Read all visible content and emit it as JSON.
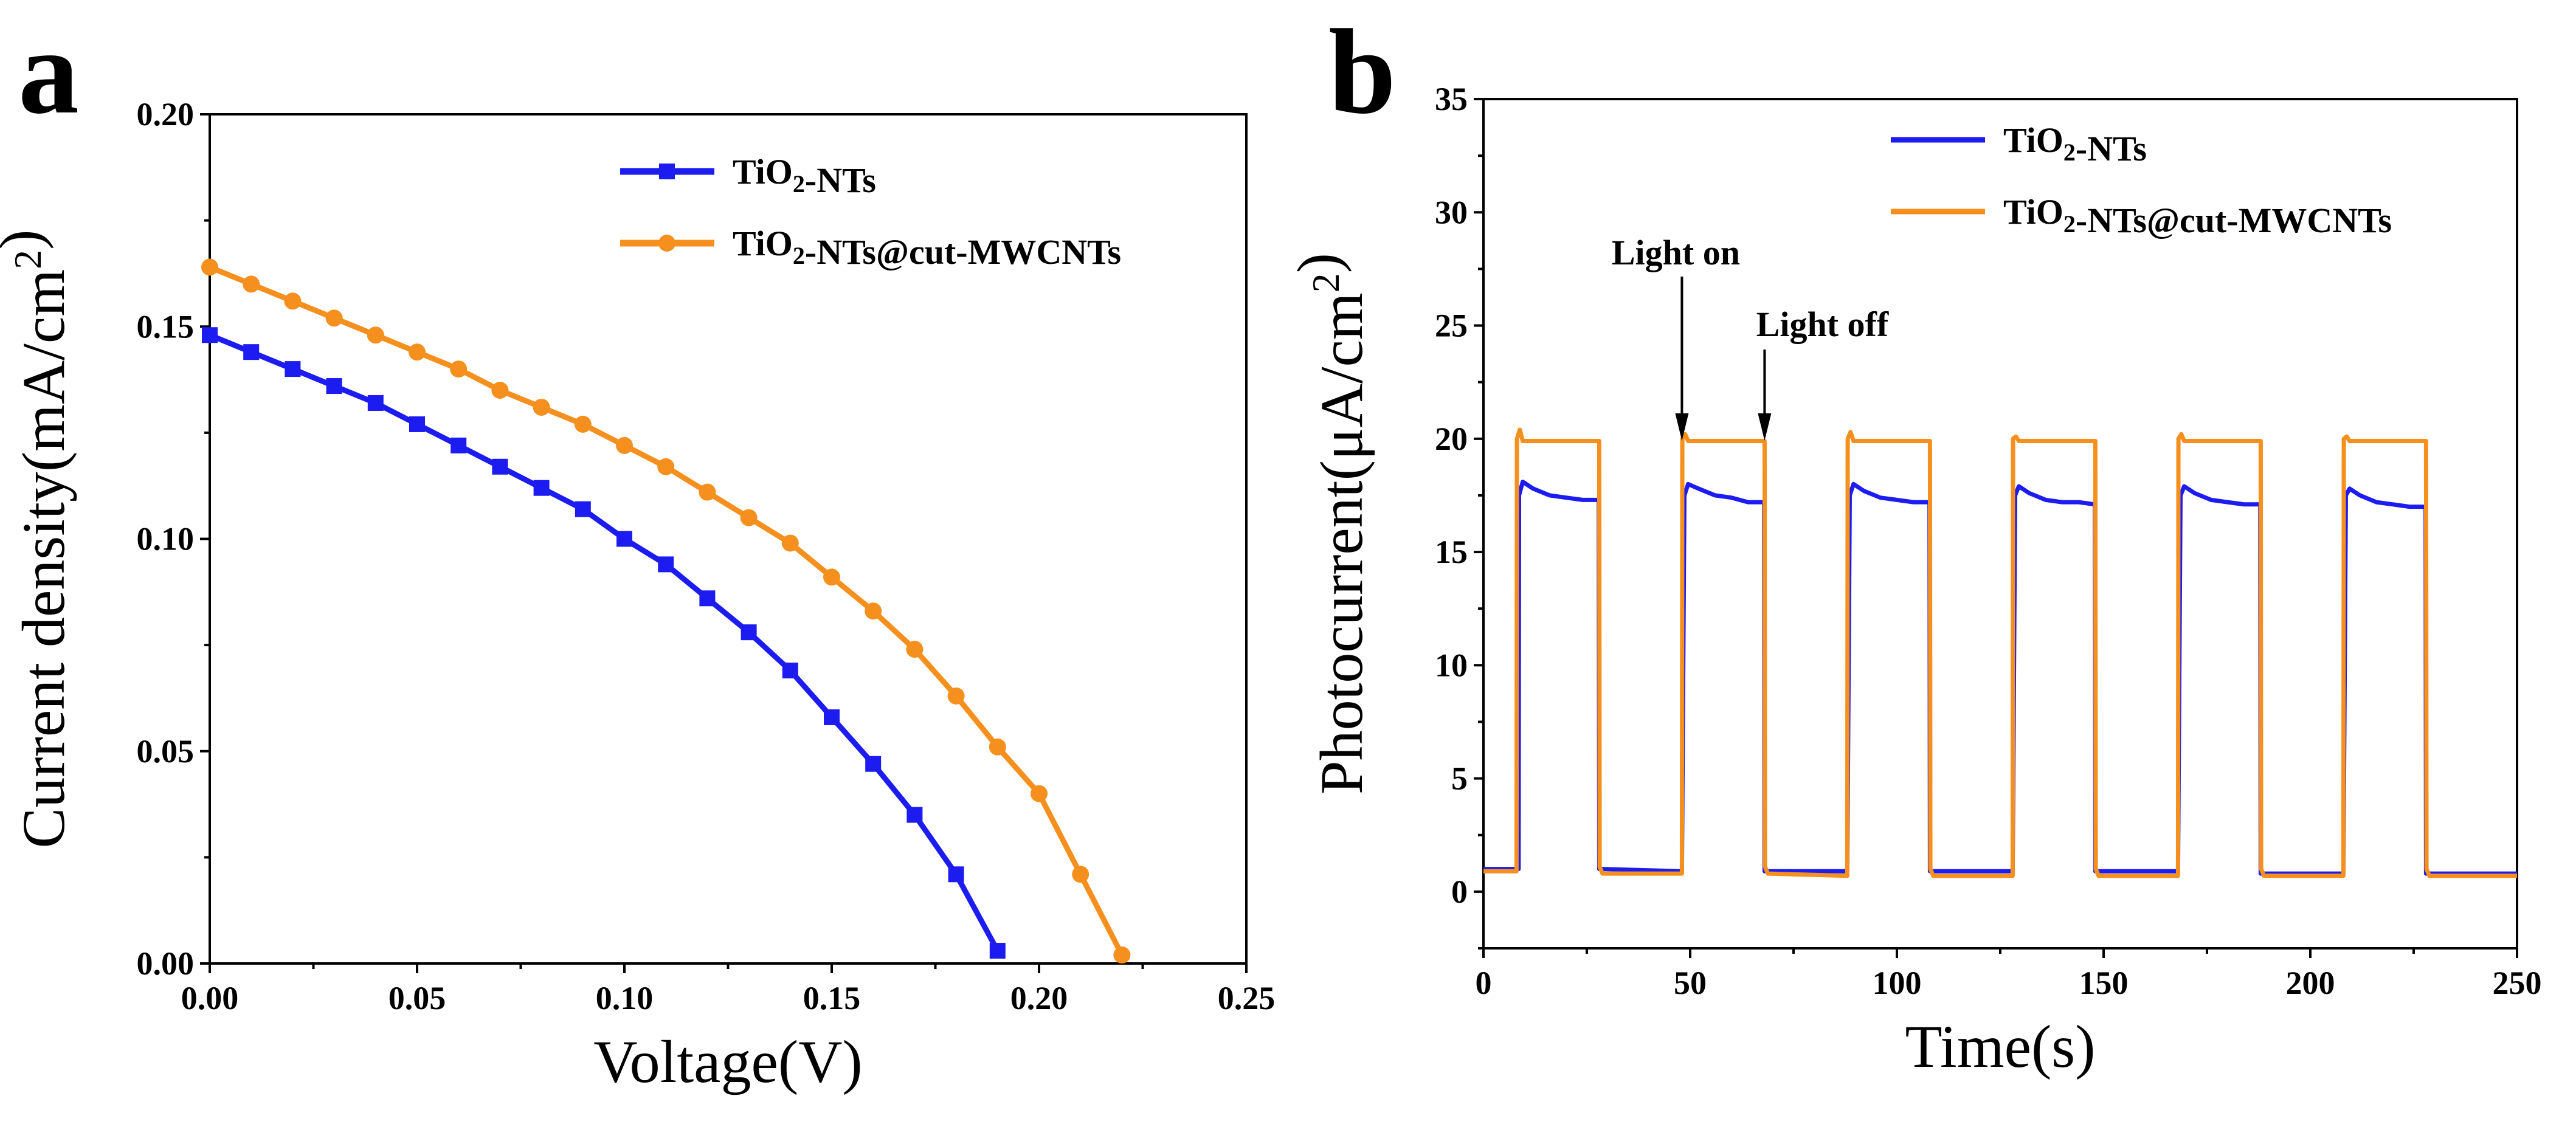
{
  "chart_data": [
    {
      "panel": "a",
      "type": "line",
      "xlabel": "Voltage(V)",
      "ylabel": "Current density(mA/cm²)",
      "xlim": [
        0,
        0.25
      ],
      "ylim": [
        0,
        0.2
      ],
      "x_ticks": [
        "0.00",
        "0.05",
        "0.10",
        "0.15",
        "0.20",
        "0.25"
      ],
      "y_ticks": [
        "0.00",
        "0.05",
        "0.10",
        "0.15",
        "0.20"
      ],
      "legend_position": "top-right",
      "series": [
        {
          "name": "TiO₂-NTs",
          "color": "#1c1cf0",
          "marker": "square",
          "x": [
            0.0,
            0.01,
            0.02,
            0.03,
            0.04,
            0.05,
            0.06,
            0.07,
            0.08,
            0.09,
            0.1,
            0.11,
            0.12,
            0.13,
            0.14,
            0.15,
            0.16,
            0.17,
            0.18,
            0.19
          ],
          "y": [
            0.148,
            0.144,
            0.14,
            0.136,
            0.132,
            0.127,
            0.122,
            0.117,
            0.112,
            0.107,
            0.1,
            0.094,
            0.086,
            0.078,
            0.069,
            0.058,
            0.047,
            0.035,
            0.021,
            0.003
          ]
        },
        {
          "name": "TiO₂-NTs@cut-MWCNTs",
          "color": "#f5901e",
          "marker": "circle",
          "x": [
            0.0,
            0.01,
            0.02,
            0.03,
            0.04,
            0.05,
            0.06,
            0.07,
            0.08,
            0.09,
            0.1,
            0.11,
            0.12,
            0.13,
            0.14,
            0.15,
            0.16,
            0.17,
            0.18,
            0.19,
            0.2,
            0.21,
            0.22
          ],
          "y": [
            0.164,
            0.16,
            0.156,
            0.152,
            0.148,
            0.144,
            0.14,
            0.135,
            0.131,
            0.127,
            0.122,
            0.117,
            0.111,
            0.105,
            0.099,
            0.091,
            0.083,
            0.074,
            0.063,
            0.051,
            0.04,
            0.021,
            0.002
          ]
        }
      ]
    },
    {
      "panel": "b",
      "type": "line",
      "xlabel": "Time(s)",
      "ylabel": "Photocurrent(μA/cm²)",
      "xlim": [
        0,
        250
      ],
      "ylim": [
        -2.5,
        35
      ],
      "x_ticks": [
        "0",
        "50",
        "100",
        "150",
        "200",
        "250"
      ],
      "y_ticks": [
        "0",
        "5",
        "10",
        "15",
        "20",
        "25",
        "30",
        "35"
      ],
      "legend_position": "top-right",
      "annotations": [
        {
          "text": "Light on",
          "x": 48
        },
        {
          "text": "Light off",
          "x": 68
        }
      ],
      "series": [
        {
          "name": "TiO₂-NTs",
          "color": "#1c1cf0",
          "x": [
            0,
            8.5,
            8.6,
            9.5,
            12,
            16,
            20,
            24,
            27.9,
            28,
            29,
            47.9,
            48,
            48.6,
            49.5,
            52,
            56,
            60,
            64,
            67.9,
            68,
            69,
            87.9,
            88,
            88.6,
            89.5,
            92,
            96,
            100,
            104,
            107.9,
            108,
            109,
            127.9,
            128,
            128.6,
            129.5,
            132,
            136,
            140,
            144,
            147.9,
            148,
            149,
            167.9,
            168,
            168.6,
            169.5,
            172,
            176,
            180,
            184,
            187.9,
            188,
            189,
            207.9,
            208,
            208.6,
            209.5,
            212,
            216,
            220,
            224,
            227.9,
            228,
            229,
            250
          ],
          "y": [
            1.0,
            1.0,
            17.5,
            18.1,
            17.8,
            17.5,
            17.4,
            17.3,
            17.3,
            1.0,
            1.0,
            0.9,
            0.9,
            17.5,
            18.0,
            17.8,
            17.5,
            17.4,
            17.2,
            17.2,
            0.9,
            0.9,
            0.9,
            0.9,
            17.5,
            18.0,
            17.7,
            17.4,
            17.3,
            17.2,
            17.2,
            0.9,
            0.9,
            0.9,
            0.9,
            17.5,
            17.9,
            17.6,
            17.3,
            17.2,
            17.2,
            17.1,
            0.9,
            0.9,
            0.9,
            0.9,
            17.5,
            17.9,
            17.6,
            17.3,
            17.2,
            17.1,
            17.1,
            0.8,
            0.8,
            0.8,
            0.8,
            17.5,
            17.8,
            17.5,
            17.2,
            17.1,
            17.0,
            17.0,
            0.8,
            0.8,
            0.8
          ]
        },
        {
          "name": "TiO₂-NTs@cut-MWCNTs",
          "color": "#f5901e",
          "x": [
            0,
            8,
            8.1,
            8.8,
            9.5,
            28,
            28.1,
            28.8,
            48,
            48.1,
            48.8,
            49.5,
            68,
            68.1,
            68.8,
            88,
            88.1,
            88.8,
            89.5,
            108,
            108.1,
            108.8,
            128,
            128.1,
            128.8,
            129.5,
            148,
            148.1,
            148.8,
            168,
            168.1,
            168.8,
            169.5,
            188,
            188.1,
            188.8,
            208,
            208.1,
            208.8,
            209.5,
            228,
            228.1,
            228.8,
            250
          ],
          "y": [
            0.9,
            0.9,
            20.0,
            20.4,
            19.9,
            19.9,
            1.1,
            0.8,
            0.8,
            20.0,
            20.2,
            19.9,
            19.9,
            1.1,
            0.8,
            0.7,
            20.0,
            20.3,
            19.9,
            19.9,
            1.0,
            0.7,
            0.7,
            20.0,
            20.1,
            19.9,
            19.9,
            1.0,
            0.7,
            0.7,
            20.0,
            20.2,
            19.9,
            19.9,
            1.0,
            0.7,
            0.7,
            20.0,
            20.1,
            19.9,
            19.9,
            1.0,
            0.7,
            0.7
          ]
        }
      ]
    }
  ]
}
